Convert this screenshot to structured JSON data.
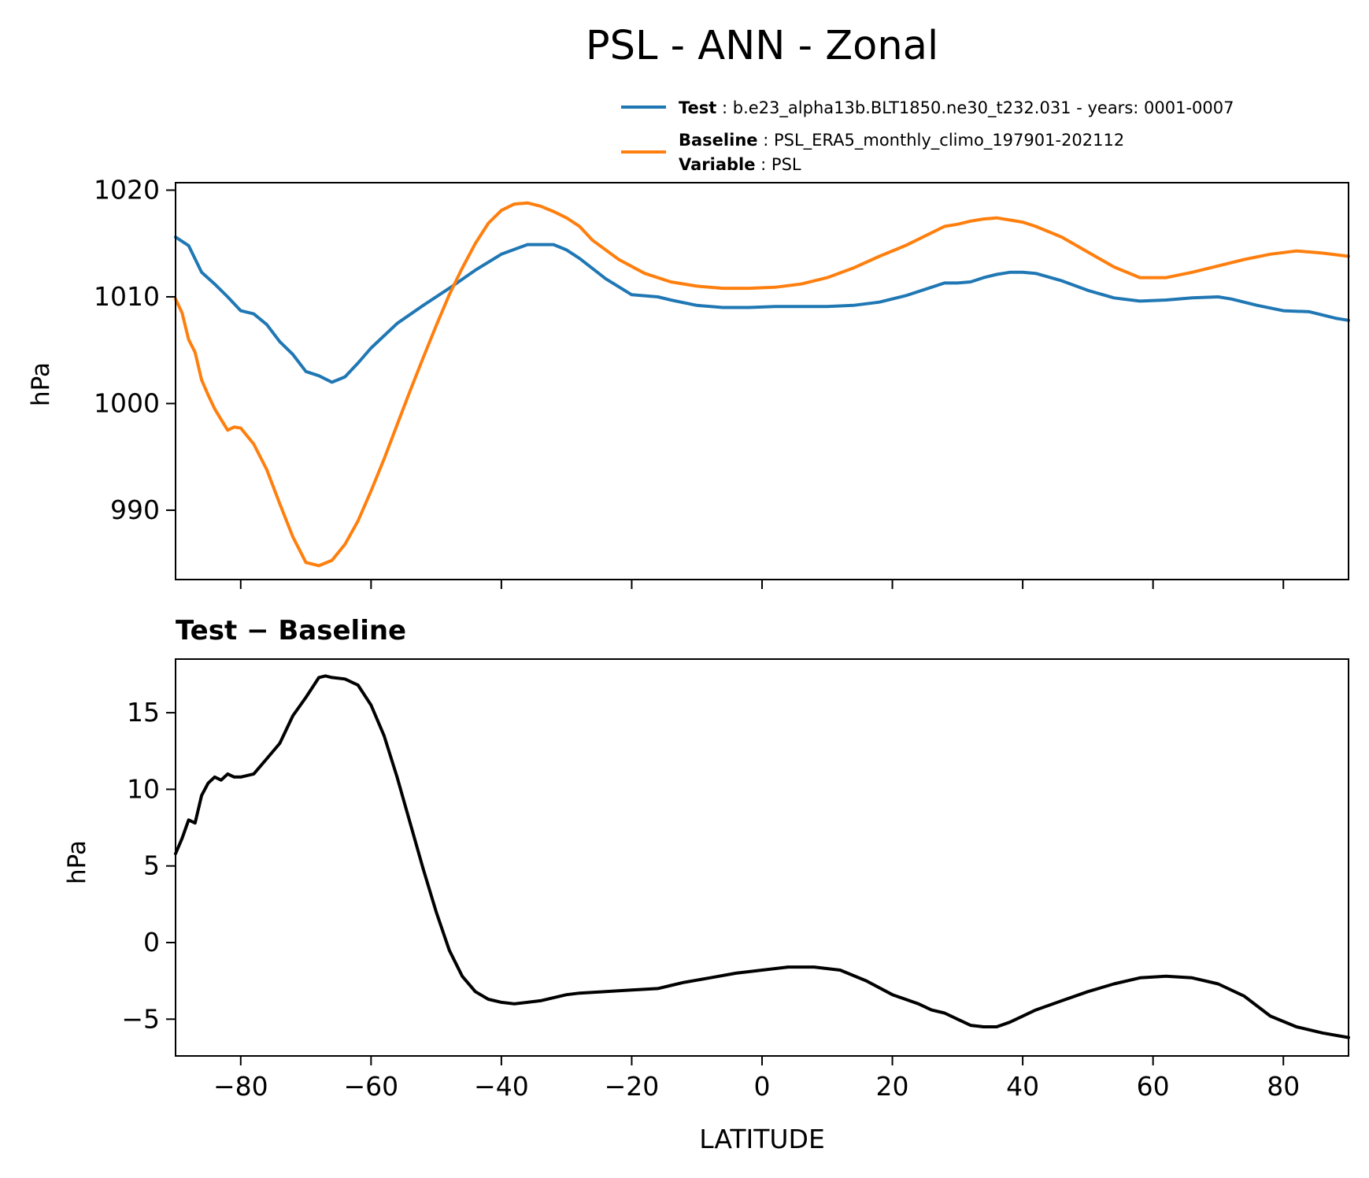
{
  "figure_title": "PSL - ANN - Zonal",
  "legend": {
    "test": {
      "label": "Test",
      "text": "b.e23_alpha13b.BLT1850.ne30_t232.031 - years: 0001-0007"
    },
    "baseline": {
      "label": "Baseline",
      "text": "PSL_ERA5_monthly_climo_197901-202112"
    },
    "variable": {
      "label": "Variable",
      "text": "PSL"
    }
  },
  "colors": {
    "test": "#1f77b4",
    "baseline": "#ff7f0e",
    "difference": "#000000"
  },
  "chart_data": [
    {
      "type": "line",
      "title": "",
      "xlabel": "",
      "ylabel": "hPa",
      "xlim": [
        -90,
        90
      ],
      "ylim": [
        983.5,
        1020.7
      ],
      "xticks": [
        -80,
        -60,
        -40,
        -20,
        0,
        20,
        40,
        60,
        80
      ],
      "xticklabels_visible": false,
      "yticks": [
        990,
        1000,
        1010,
        1020
      ],
      "yticklabels": [
        "990",
        "1000",
        "1010",
        "1020"
      ],
      "legend_position": "top-right (above axes)",
      "grid": false,
      "series": [
        {
          "name": "Test",
          "color": "#1f77b4",
          "x": [
            -90,
            -88,
            -86,
            -84,
            -82,
            -80,
            -78,
            -76,
            -74,
            -72,
            -70,
            -68,
            -66,
            -64,
            -62,
            -60,
            -56,
            -52,
            -48,
            -44,
            -40,
            -36,
            -32,
            -30,
            -28,
            -24,
            -20,
            -16,
            -14,
            -10,
            -6,
            -2,
            2,
            6,
            10,
            14,
            18,
            22,
            26,
            28,
            30,
            32,
            34,
            36,
            38,
            40,
            42,
            46,
            50,
            54,
            58,
            62,
            66,
            70,
            72,
            76,
            80,
            84,
            88,
            90
          ],
          "y": [
            1015.6,
            1014.8,
            1012.3,
            1011.2,
            1010.0,
            1008.7,
            1008.4,
            1007.4,
            1005.8,
            1004.6,
            1003.0,
            1002.6,
            1002.0,
            1002.5,
            1003.8,
            1005.2,
            1007.5,
            1009.2,
            1010.8,
            1012.5,
            1014.0,
            1014.9,
            1014.9,
            1014.4,
            1013.6,
            1011.7,
            1010.2,
            1010.0,
            1009.7,
            1009.2,
            1009.0,
            1009.0,
            1009.1,
            1009.1,
            1009.1,
            1009.2,
            1009.5,
            1010.1,
            1010.9,
            1011.3,
            1011.3,
            1011.4,
            1011.8,
            1012.1,
            1012.3,
            1012.3,
            1012.2,
            1011.5,
            1010.6,
            1009.9,
            1009.6,
            1009.7,
            1009.9,
            1010.0,
            1009.8,
            1009.2,
            1008.7,
            1008.6,
            1008.0,
            1007.8
          ]
        },
        {
          "name": "Baseline",
          "color": "#ff7f0e",
          "x": [
            -90,
            -89,
            -88,
            -87,
            -86,
            -85,
            -84,
            -83,
            -82,
            -81,
            -80,
            -78,
            -76,
            -74,
            -72,
            -70,
            -68,
            -66,
            -64,
            -62,
            -60,
            -58,
            -56,
            -54,
            -52,
            -50,
            -48,
            -46,
            -44,
            -42,
            -40,
            -38,
            -36,
            -34,
            -32,
            -30,
            -28,
            -26,
            -22,
            -18,
            -14,
            -10,
            -6,
            -2,
            2,
            6,
            10,
            14,
            18,
            22,
            26,
            28,
            30,
            32,
            34,
            36,
            38,
            40,
            42,
            46,
            50,
            54,
            58,
            62,
            66,
            70,
            74,
            78,
            82,
            86,
            90
          ],
          "y": [
            1009.8,
            1008.5,
            1006.0,
            1004.8,
            1002.2,
            1000.8,
            999.5,
            998.5,
            997.5,
            997.8,
            997.7,
            996.2,
            993.8,
            990.6,
            987.5,
            985.1,
            984.8,
            985.3,
            986.8,
            989.0,
            991.8,
            994.8,
            998.0,
            1001.2,
            1004.3,
            1007.3,
            1010.2,
            1012.7,
            1015.0,
            1016.9,
            1018.1,
            1018.7,
            1018.8,
            1018.5,
            1018.0,
            1017.4,
            1016.6,
            1015.3,
            1013.5,
            1012.2,
            1011.4,
            1011.0,
            1010.8,
            1010.8,
            1010.9,
            1011.2,
            1011.8,
            1012.7,
            1013.8,
            1014.8,
            1016.0,
            1016.6,
            1016.8,
            1017.1,
            1017.3,
            1017.4,
            1017.2,
            1017.0,
            1016.6,
            1015.6,
            1014.2,
            1012.8,
            1011.8,
            1011.8,
            1012.3,
            1012.9,
            1013.5,
            1014.0,
            1014.3,
            1014.1,
            1013.8
          ]
        }
      ]
    },
    {
      "type": "line",
      "title": "Test − Baseline",
      "xlabel": "LATITUDE",
      "ylabel": "hPa",
      "xlim": [
        -90,
        90
      ],
      "ylim": [
        -7.4,
        18.5
      ],
      "xticks": [
        -80,
        -60,
        -40,
        -20,
        0,
        20,
        40,
        60,
        80
      ],
      "xticklabels": [
        "−80",
        "−60",
        "−40",
        "−20",
        "0",
        "20",
        "40",
        "60",
        "80"
      ],
      "yticks": [
        -5,
        0,
        5,
        10,
        15
      ],
      "yticklabels": [
        "−5",
        "0",
        "5",
        "10",
        "15"
      ],
      "grid": false,
      "series": [
        {
          "name": "",
          "color": "#000000",
          "x": [
            -90,
            -89,
            -88,
            -87,
            -86,
            -85,
            -84,
            -83,
            -82,
            -81,
            -80,
            -78,
            -76,
            -74,
            -72,
            -70,
            -68,
            -67,
            -66,
            -64,
            -62,
            -60,
            -58,
            -56,
            -54,
            -52,
            -50,
            -48,
            -46,
            -44,
            -42,
            -40,
            -38,
            -36,
            -34,
            -32,
            -30,
            -28,
            -24,
            -20,
            -16,
            -14,
            -12,
            -8,
            -4,
            0,
            4,
            8,
            12,
            16,
            20,
            24,
            26,
            28,
            30,
            32,
            34,
            36,
            38,
            40,
            42,
            46,
            50,
            54,
            58,
            62,
            66,
            70,
            74,
            78,
            82,
            86,
            90
          ],
          "y": [
            5.8,
            6.8,
            8.0,
            7.8,
            9.6,
            10.4,
            10.8,
            10.6,
            11.0,
            10.8,
            10.8,
            11.0,
            12.0,
            13.0,
            14.8,
            16.0,
            17.3,
            17.4,
            17.3,
            17.2,
            16.8,
            15.5,
            13.5,
            10.8,
            7.8,
            4.8,
            2.0,
            -0.5,
            -2.2,
            -3.2,
            -3.7,
            -3.9,
            -4.0,
            -3.9,
            -3.8,
            -3.6,
            -3.4,
            -3.3,
            -3.2,
            -3.1,
            -3.0,
            -2.8,
            -2.6,
            -2.3,
            -2.0,
            -1.8,
            -1.6,
            -1.6,
            -1.8,
            -2.5,
            -3.4,
            -4.0,
            -4.4,
            -4.6,
            -5.0,
            -5.4,
            -5.5,
            -5.5,
            -5.2,
            -4.8,
            -4.4,
            -3.8,
            -3.2,
            -2.7,
            -2.3,
            -2.2,
            -2.3,
            -2.7,
            -3.5,
            -4.8,
            -5.5,
            -5.9,
            -6.2
          ]
        }
      ]
    }
  ]
}
